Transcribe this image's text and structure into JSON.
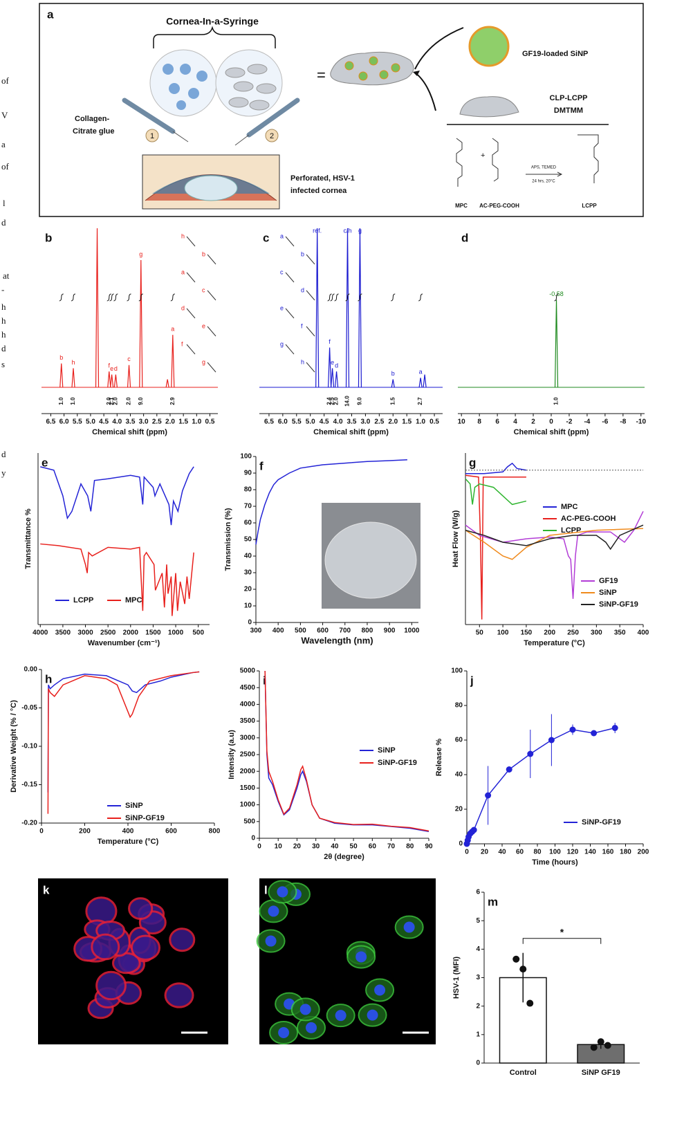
{
  "margin_text": [
    "of",
    "V",
    "a",
    "of",
    "l",
    "d",
    "at",
    "-",
    "h",
    "h",
    "h",
    "d",
    "s",
    "d",
    "y"
  ],
  "schematic": {
    "panel_label": "a",
    "title": "Cornea-In-a-Syringe",
    "glue_label": [
      "Collagen-",
      "Citrate glue"
    ],
    "syringe_numbers": [
      "1",
      "2"
    ],
    "equals": "=",
    "nanoparticle_label": "GF19-loaded SiNP",
    "hydrogel_label": [
      "CLP-LCPP",
      "DMTMM"
    ],
    "cornea_label": [
      "Perforated, HSV-1",
      "infected cornea"
    ],
    "plus": "+",
    "conditions": [
      "APS, TEMED",
      "24 hrs, 20°C"
    ],
    "compounds": [
      "MPC",
      "AC-PEG-COOH",
      "LCPP"
    ]
  },
  "images": [
    {
      "panel_label": "k"
    },
    {
      "panel_label": "l"
    }
  ],
  "chart_data": [
    {
      "type": "spectrum",
      "panel_label": "b",
      "color": "#e8201c",
      "xlabel": "Chemical shift (ppm)",
      "xlim": [
        6.85,
        0.2
      ],
      "ylim": [
        0,
        1
      ],
      "xticks": [
        6.5,
        {
          "value": 6,
          "label": "6.0"
        },
        5.5,
        {
          "value": 5,
          "label": "5.0"
        },
        4.5,
        {
          "value": 4,
          "label": "4.0"
        },
        3.5,
        {
          "value": 3,
          "label": "3.0"
        },
        2.5,
        {
          "value": 2,
          "label": "2.0"
        },
        1.5,
        {
          "value": 1,
          "label": "1.0"
        },
        0.5
      ],
      "peak_x": [
        6.1,
        5.65,
        4.75,
        4.3,
        4.2,
        4.05,
        3.55,
        3.1,
        2.1,
        1.9
      ],
      "peak_height": [
        0.15,
        0.12,
        1,
        0.1,
        0.08,
        0.08,
        0.14,
        0.8,
        0.05,
        0.33
      ],
      "peak_labels": [
        "b",
        "h",
        null,
        "f",
        "e",
        "d",
        "c",
        "g",
        null,
        "a"
      ],
      "integral_x": [
        6.1,
        5.65,
        4.3,
        4.2,
        4.05,
        3.55,
        3.1,
        1.9
      ],
      "integral_labels": [
        "1.0",
        "1.0",
        "2.0",
        "2.1",
        "2.0",
        "2.0",
        "9.0",
        "2.9"
      ],
      "structure_labels": [
        "h",
        "b",
        "a",
        "c",
        "d",
        "e",
        "f",
        "g"
      ]
    },
    {
      "type": "spectrum",
      "panel_label": "c",
      "color": "#1a1ad0",
      "xlabel": "Chemical shift (ppm)",
      "xlim": [
        6.85,
        0.2
      ],
      "ylim": [
        0,
        1
      ],
      "xticks": [
        6.5,
        {
          "value": 6,
          "label": "6.0"
        },
        5.5,
        {
          "value": 5,
          "label": "5.0"
        },
        4.5,
        {
          "value": 4,
          "label": "4.0"
        },
        3.5,
        {
          "value": 3,
          "label": "3.0"
        },
        2.5,
        {
          "value": 2,
          "label": "2.0"
        },
        1.5,
        {
          "value": 1,
          "label": "1.0"
        },
        0.5
      ],
      "peak_x": [
        4.75,
        4.3,
        4.2,
        4.05,
        3.65,
        3.2,
        2.0,
        1.0,
        0.85
      ],
      "peak_height": [
        1,
        0.25,
        0.12,
        0.1,
        1,
        1,
        0.05,
        0.06,
        0.08
      ],
      "peak_labels": [
        "ref.",
        "f",
        "e",
        "d",
        "c/h",
        "g",
        "b",
        "a",
        null
      ],
      "integral_x": [
        4.3,
        4.2,
        4.05,
        3.65,
        3.2,
        2.0,
        1.0
      ],
      "integral_labels": [
        "2.4",
        "2.5",
        "2.0",
        "14.0",
        "9.0",
        "1.5",
        "2.7"
      ],
      "structure_labels": [
        "a",
        "b",
        "c",
        "d",
        "e",
        "f",
        "g",
        "h"
      ]
    },
    {
      "type": "spectrum",
      "panel_label": "d",
      "color": "#1f8a1f",
      "xlabel": "Chemical shift (ppm)",
      "xlim": [
        10.4,
        -10.4
      ],
      "ylim": [
        0,
        1
      ],
      "xticks": [
        10,
        8,
        6,
        4,
        2,
        0,
        -2,
        -4,
        -6,
        -8,
        -10
      ],
      "peak_x": [
        -0.58
      ],
      "peak_height": [
        0.55
      ],
      "peak_labels": [
        "-0.58"
      ],
      "integral_x": [
        -0.58
      ],
      "integral_labels": [
        "1.0"
      ],
      "structure_labels": []
    },
    {
      "type": "line",
      "panel_label": "e",
      "xlabel": "Wavenumber (cm⁻¹)",
      "ylabel": "Transmittance %",
      "xlim": [
        4050,
        250
      ],
      "ylim": [
        0,
        100
      ],
      "xticks": [
        4000,
        3500,
        3000,
        2500,
        2000,
        1500,
        1000,
        500
      ],
      "series": [
        {
          "name": "LCPP",
          "color": "#2323d6",
          "x": [
            4000,
            3700,
            3500,
            3400,
            3300,
            3100,
            2950,
            2880,
            2800,
            2500,
            2000,
            1800,
            1730,
            1700,
            1500,
            1460,
            1350,
            1250,
            1150,
            1100,
            1050,
            950,
            850,
            700,
            600
          ],
          "values": [
            92,
            90,
            75,
            62,
            66,
            82,
            75,
            66,
            84,
            85,
            87,
            86,
            70,
            86,
            80,
            75,
            82,
            76,
            70,
            58,
            72,
            66,
            78,
            88,
            92
          ]
        },
        {
          "name": "MPC",
          "color": "#e8201c",
          "x": [
            4000,
            3600,
            3100,
            3000,
            2960,
            2930,
            2850,
            2500,
            2000,
            1800,
            1730,
            1700,
            1650,
            1480,
            1450,
            1300,
            1250,
            1200,
            1170,
            1100,
            1080,
            1000,
            960,
            900,
            800,
            750,
            700,
            600
          ],
          "values": [
            47,
            46,
            44,
            35,
            30,
            42,
            40,
            45,
            44,
            45,
            8,
            40,
            42,
            35,
            20,
            30,
            10,
            35,
            18,
            28,
            5,
            30,
            8,
            25,
            12,
            28,
            15,
            42
          ]
        }
      ]
    },
    {
      "type": "line",
      "panel_label": "f",
      "xlabel": "Wavelength (nm)",
      "ylabel": "Transmission (%)",
      "xlim": [
        300,
        1030
      ],
      "ylim": [
        0,
        100
      ],
      "xticks": [
        300,
        400,
        500,
        600,
        700,
        800,
        900,
        1000
      ],
      "yticks": [
        0,
        10,
        20,
        30,
        40,
        50,
        60,
        70,
        80,
        90,
        100
      ],
      "series": [
        {
          "name": null,
          "color": "#2323d6",
          "x": [
            300,
            310,
            320,
            340,
            360,
            380,
            400,
            450,
            500,
            550,
            600,
            700,
            800,
            900,
            980
          ],
          "values": [
            47,
            55,
            62,
            71,
            78,
            83,
            86,
            90,
            93,
            94,
            95,
            96,
            97,
            97.5,
            98
          ]
        }
      ]
    },
    {
      "type": "line",
      "panel_label": "g",
      "xlabel": "Temperature (°C)",
      "ylabel": "Heat Flow (W/g)",
      "xlim": [
        20,
        400
      ],
      "ylim": [
        0,
        100
      ],
      "xticks": [
        50,
        100,
        150,
        200,
        250,
        300,
        350,
        400
      ],
      "series": [
        {
          "name": "MPC",
          "color": "#2323d6",
          "x": [
            20,
            60,
            100,
            110,
            120,
            130,
            150
          ],
          "values": [
            88,
            88,
            89,
            92,
            94,
            91,
            90
          ]
        },
        {
          "name": "AC-PEG-COOH",
          "color": "#e8201c",
          "x": [
            20,
            48,
            52,
            55,
            58,
            150
          ],
          "values": [
            87,
            86,
            50,
            3,
            86,
            86
          ]
        },
        {
          "name": "LCPP",
          "color": "#2fb52f",
          "x": [
            20,
            30,
            35,
            40,
            50,
            80,
            120,
            150
          ],
          "values": [
            85,
            82,
            70,
            80,
            82,
            80,
            70,
            72
          ]
        },
        {
          "name": "GF19",
          "color": "#b23cd6",
          "x": [
            20,
            50,
            100,
            150,
            200,
            230,
            240,
            245,
            250,
            255,
            260,
            280,
            330,
            360,
            380,
            400
          ],
          "values": [
            58,
            52,
            48,
            50,
            51,
            50,
            40,
            38,
            15,
            40,
            52,
            54,
            54,
            48,
            55,
            66
          ]
        },
        {
          "name": "SiNP",
          "color": "#f08a1c",
          "x": [
            20,
            60,
            100,
            120,
            150,
            200,
            300,
            400
          ],
          "values": [
            55,
            48,
            40,
            38,
            45,
            52,
            55,
            56
          ]
        },
        {
          "name": "SiNP-GF19",
          "color": "#222222",
          "x": [
            20,
            60,
            100,
            150,
            200,
            250,
            300,
            320,
            330,
            350,
            400
          ],
          "values": [
            55,
            52,
            48,
            46,
            50,
            52,
            52,
            48,
            44,
            52,
            58
          ]
        }
      ]
    },
    {
      "type": "line",
      "panel_label": "h",
      "xlabel": "Temperature (°C)",
      "ylabel": "Derivative Weight (% / °C)",
      "xlim": [
        0,
        800
      ],
      "ylim": [
        -0.2,
        0
      ],
      "xticks": [
        0,
        200,
        400,
        600,
        800
      ],
      "yticks": [
        {
          "value": 0,
          "label": "0.00"
        },
        -0.05,
        {
          "value": -0.1,
          "label": "-0.10"
        },
        -0.15,
        {
          "value": -0.2,
          "label": "-0.20"
        }
      ],
      "series": [
        {
          "name": "SiNP",
          "color": "#2323d6",
          "x": [
            30,
            32,
            40,
            60,
            100,
            200,
            300,
            400,
            420,
            440,
            480,
            550,
            600,
            700,
            730
          ],
          "values": [
            -0.16,
            -0.02,
            -0.025,
            -0.02,
            -0.012,
            -0.006,
            -0.008,
            -0.02,
            -0.028,
            -0.03,
            -0.02,
            -0.015,
            -0.01,
            -0.004,
            -0.003
          ]
        },
        {
          "name": "SiNP-GF19",
          "color": "#e8201c",
          "x": [
            30,
            32,
            40,
            60,
            100,
            200,
            300,
            350,
            400,
            410,
            420,
            450,
            500,
            600,
            700,
            730
          ],
          "values": [
            -0.188,
            -0.025,
            -0.03,
            -0.035,
            -0.02,
            -0.008,
            -0.012,
            -0.02,
            -0.055,
            -0.062,
            -0.058,
            -0.035,
            -0.015,
            -0.008,
            -0.004,
            -0.003
          ]
        }
      ]
    },
    {
      "type": "line",
      "panel_label": "i",
      "xlabel": "2θ (degree)",
      "ylabel": "Intensity (a.u)",
      "xlim": [
        0,
        90
      ],
      "ylim": [
        0,
        5000
      ],
      "xticks": [
        0,
        10,
        20,
        30,
        40,
        50,
        60,
        70,
        80,
        90
      ],
      "yticks": [
        0,
        500,
        1000,
        1500,
        2000,
        2500,
        3000,
        3500,
        4000,
        4500,
        5000
      ],
      "series": [
        {
          "name": "SiNP",
          "color": "#2323d6",
          "x": [
            3,
            4,
            5,
            7,
            10,
            13,
            16,
            20,
            22,
            23,
            25,
            28,
            32,
            40,
            50,
            60,
            70,
            80,
            90
          ],
          "values": [
            5000,
            2500,
            1800,
            1600,
            1100,
            700,
            850,
            1500,
            1900,
            2000,
            1700,
            1000,
            600,
            450,
            400,
            400,
            350,
            300,
            200
          ]
        },
        {
          "name": "SiNP-GF19",
          "color": "#e8201c",
          "x": [
            3,
            4,
            5,
            7,
            10,
            13,
            16,
            20,
            22,
            23,
            25,
            28,
            32,
            40,
            50,
            60,
            70,
            80,
            90
          ],
          "values": [
            5000,
            2600,
            2000,
            1700,
            1150,
            720,
            900,
            1600,
            2050,
            2150,
            1750,
            1000,
            600,
            470,
            410,
            420,
            360,
            320,
            220
          ]
        }
      ]
    },
    {
      "type": "line",
      "panel_label": "j",
      "xlabel": "Time (hours)",
      "ylabel": "Release %",
      "xlim": [
        0,
        200
      ],
      "ylim": [
        0,
        100
      ],
      "xticks": [
        0,
        20,
        40,
        60,
        80,
        100,
        120,
        140,
        160,
        180,
        200
      ],
      "yticks": [
        0,
        20,
        40,
        60,
        80,
        100
      ],
      "series": [
        {
          "name": "SiNP-GF19",
          "color": "#2323d6",
          "markers": true,
          "x": [
            0,
            1,
            2,
            4,
            6,
            8,
            24,
            48,
            72,
            96,
            120,
            144,
            168
          ],
          "values": [
            0,
            2,
            4,
            6,
            7,
            8,
            28,
            43,
            52,
            60,
            66,
            64,
            67
          ],
          "errors": [
            0,
            0,
            0,
            0,
            0,
            0,
            17,
            0,
            14,
            15,
            3,
            0,
            3
          ]
        }
      ]
    },
    {
      "type": "bar",
      "panel_label": "m",
      "ylabel": "HSV-1 (MFI)",
      "ylim": [
        0,
        6
      ],
      "yticks": [
        0,
        1,
        2,
        3,
        4,
        5,
        6
      ],
      "categories": [
        "Control",
        "SiNP GF19"
      ],
      "values": [
        3,
        0.65
      ],
      "errors": [
        0.87,
        0.15
      ],
      "points": [
        [
          3.65,
          3.3,
          2.1
        ],
        [
          0.55,
          0.75,
          0.62
        ]
      ],
      "colors": [
        "#ffffff",
        "#6e6e6e"
      ],
      "annotation": "*"
    }
  ]
}
